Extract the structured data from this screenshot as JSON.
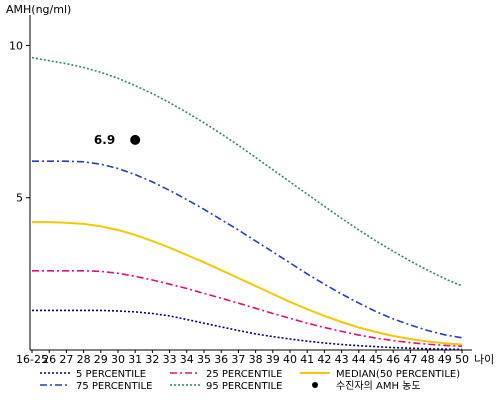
{
  "chart_data": {
    "type": "line",
    "ylabel": "AMH(ng/ml)",
    "xlabel": "나이",
    "ylim": [
      0,
      11
    ],
    "y_ticks": [
      5,
      10
    ],
    "x": [
      "16-25",
      "26",
      "27",
      "28",
      "29",
      "30",
      "31",
      "32",
      "33",
      "34",
      "35",
      "36",
      "37",
      "38",
      "39",
      "40",
      "41",
      "42",
      "43",
      "44",
      "45",
      "46",
      "47",
      "48",
      "49",
      "50"
    ],
    "x_order": [
      25,
      26,
      27,
      28,
      29,
      30,
      31,
      32,
      33,
      34,
      35,
      36,
      37,
      38,
      39,
      40,
      41,
      42,
      43,
      44,
      45,
      46,
      47,
      48,
      49,
      50
    ],
    "series": [
      {
        "name": "5 PERCENTILE",
        "color": "#000080",
        "style": "dotted",
        "values": [
          1.3,
          1.3,
          1.3,
          1.3,
          1.3,
          1.28,
          1.25,
          1.2,
          1.12,
          1.0,
          0.88,
          0.76,
          0.64,
          0.53,
          0.44,
          0.36,
          0.29,
          0.23,
          0.18,
          0.14,
          0.11,
          0.08,
          0.06,
          0.04,
          0.03,
          0.02
        ]
      },
      {
        "name": "25 PERCENTILE",
        "color": "#e0107a",
        "style": "dashdot",
        "values": [
          2.6,
          2.6,
          2.6,
          2.6,
          2.58,
          2.52,
          2.42,
          2.3,
          2.16,
          2.02,
          1.86,
          1.7,
          1.54,
          1.37,
          1.2,
          1.04,
          0.88,
          0.74,
          0.61,
          0.49,
          0.39,
          0.31,
          0.24,
          0.19,
          0.15,
          0.12
        ]
      },
      {
        "name": "MEDIAN(50 PERCENTILE)",
        "color": "#f5c800",
        "style": "solid",
        "values": [
          4.2,
          4.2,
          4.18,
          4.14,
          4.06,
          3.94,
          3.78,
          3.58,
          3.36,
          3.12,
          2.88,
          2.62,
          2.36,
          2.1,
          1.84,
          1.58,
          1.34,
          1.12,
          0.92,
          0.74,
          0.59,
          0.46,
          0.36,
          0.28,
          0.22,
          0.18
        ]
      },
      {
        "name": "75 PERCENTILE",
        "color": "#2040c0",
        "style": "dashdot",
        "values": [
          6.2,
          6.2,
          6.2,
          6.18,
          6.1,
          5.96,
          5.76,
          5.52,
          5.24,
          4.94,
          4.62,
          4.28,
          3.94,
          3.58,
          3.22,
          2.86,
          2.5,
          2.16,
          1.84,
          1.54,
          1.26,
          1.02,
          0.82,
          0.64,
          0.5,
          0.4
        ]
      },
      {
        "name": "95 PERCENTILE",
        "color": "#2e8b57",
        "style": "dotted",
        "values": [
          9.6,
          9.5,
          9.4,
          9.28,
          9.12,
          8.92,
          8.68,
          8.42,
          8.12,
          7.8,
          7.46,
          7.1,
          6.72,
          6.32,
          5.92,
          5.52,
          5.12,
          4.72,
          4.32,
          3.94,
          3.58,
          3.24,
          2.92,
          2.62,
          2.34,
          2.1
        ]
      }
    ],
    "points": [
      {
        "name": "수진자의 AMH 농도",
        "x": "31",
        "x_order": 31,
        "y": 6.9,
        "label": "6.9"
      }
    ],
    "grid": false,
    "legend_position": "bottom",
    "legend": [
      {
        "label": "5 PERCENTILE",
        "color": "#000080",
        "style": "dotted"
      },
      {
        "label": "25 PERCENTILE",
        "color": "#e0107a",
        "style": "dashdot"
      },
      {
        "label": "MEDIAN(50 PERCENTILE)",
        "color": "#f5c800",
        "style": "solid"
      },
      {
        "label": "75 PERCENTILE",
        "color": "#2040c0",
        "style": "dashdot"
      },
      {
        "label": "95 PERCENTILE",
        "color": "#2e8b57",
        "style": "dotted"
      },
      {
        "label": "수진자의 AMH 농도",
        "color": "#000000",
        "style": "marker"
      }
    ]
  }
}
